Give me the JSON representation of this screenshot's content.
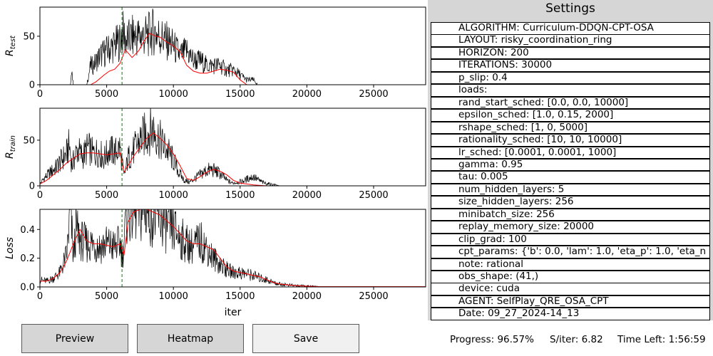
{
  "chart_data": [
    {
      "type": "line",
      "ylabel": "R_test",
      "ylabel_base": "R",
      "ylabel_sub": "test",
      "xlim": [
        0,
        28900
      ],
      "ylim": [
        0,
        80
      ],
      "xticks": [
        0,
        5000,
        10000,
        15000,
        20000,
        25000
      ],
      "yticks": [
        0,
        50
      ],
      "vline_x": 6150,
      "series": [
        {
          "color": "#000000",
          "style": "raw",
          "x": [
            0,
            2300,
            2350,
            2500,
            3000,
            3500,
            3800,
            4000,
            4500,
            5000,
            5500,
            6000,
            6150,
            6500,
            7000,
            7500,
            8000,
            8500,
            9000,
            9500,
            10000,
            10500,
            11000,
            11500,
            12000,
            12500,
            13000,
            13500,
            14000,
            14500,
            15000,
            15500,
            16000,
            16300,
            16500,
            28900
          ],
          "y": [
            0,
            0,
            20,
            0,
            0,
            0,
            20,
            20,
            30,
            35,
            40,
            45,
            55,
            45,
            50,
            50,
            50,
            55,
            50,
            45,
            40,
            30,
            35,
            25,
            25,
            20,
            20,
            20,
            15,
            15,
            10,
            5,
            5,
            0,
            0,
            0
          ]
        },
        {
          "color": "#ff0000",
          "style": "smooth",
          "x": [
            0,
            3800,
            4200,
            4800,
            5200,
            5600,
            6000,
            6400,
            6900,
            7400,
            7800,
            8200,
            8700,
            9000,
            9500,
            10000,
            10500,
            11000,
            11500,
            12000,
            12500,
            13000,
            13500,
            14000,
            14500,
            15000,
            15500,
            28900
          ],
          "y": [
            0,
            0,
            3,
            10,
            14,
            16,
            22,
            36,
            28,
            35,
            45,
            53,
            50,
            49,
            44,
            40,
            34,
            20,
            14,
            12,
            12,
            14,
            16,
            15,
            13,
            5,
            0,
            0
          ]
        }
      ]
    },
    {
      "type": "line",
      "ylabel": "R_train",
      "ylabel_base": "R",
      "ylabel_sub": "train",
      "xlim": [
        0,
        28900
      ],
      "ylim": [
        0,
        85
      ],
      "xticks": [
        0,
        5000,
        10000,
        15000,
        20000,
        25000
      ],
      "yticks": [
        0,
        50
      ],
      "vline_x": 6150,
      "series": [
        {
          "color": "#000000",
          "style": "raw",
          "x": [
            0,
            300,
            800,
            1200,
            1600,
            2000,
            2200,
            2400,
            2800,
            3200,
            3600,
            4000,
            4400,
            4800,
            5200,
            5600,
            6000,
            6300,
            6600,
            7000,
            7400,
            7800,
            8200,
            8500,
            8800,
            9200,
            9600,
            10000,
            10400,
            10800,
            11200,
            11600,
            12000,
            12400,
            12800,
            13200,
            13600,
            14000,
            14400,
            14800,
            15200,
            15600,
            16000,
            16400,
            16800,
            17200,
            17600,
            18000,
            28900
          ],
          "y": [
            2,
            8,
            15,
            20,
            28,
            35,
            45,
            22,
            40,
            32,
            42,
            35,
            38,
            30,
            40,
            36,
            42,
            10,
            30,
            38,
            48,
            55,
            60,
            62,
            55,
            45,
            38,
            28,
            15,
            6,
            4,
            8,
            12,
            16,
            18,
            16,
            12,
            6,
            3,
            4,
            5,
            8,
            10,
            6,
            3,
            2,
            1,
            0,
            0
          ]
        },
        {
          "color": "#ff0000",
          "style": "smooth",
          "x": [
            0,
            500,
            1000,
            1500,
            2000,
            2500,
            3000,
            3500,
            4000,
            4500,
            5000,
            5500,
            6000,
            6300,
            6600,
            7000,
            7500,
            8000,
            8500,
            9000,
            9500,
            10000,
            10500,
            11000,
            11500,
            12000,
            12500,
            13000,
            13500,
            14000,
            14500,
            15000,
            15500,
            16000,
            17000,
            28900
          ],
          "y": [
            2,
            6,
            12,
            18,
            25,
            30,
            35,
            36,
            36,
            35,
            34,
            35,
            36,
            15,
            22,
            32,
            42,
            52,
            58,
            52,
            45,
            35,
            22,
            8,
            6,
            10,
            15,
            18,
            16,
            12,
            6,
            3,
            2,
            1,
            0,
            0
          ]
        }
      ]
    },
    {
      "type": "line",
      "ylabel": "Loss",
      "ylabel_base": "Loss",
      "ylabel_sub": "",
      "xlabel": "iter",
      "xlim": [
        0,
        28900
      ],
      "ylim": [
        0,
        0.54
      ],
      "xticks": [
        0,
        5000,
        10000,
        15000,
        20000,
        25000
      ],
      "yticks": [
        0.0,
        0.2,
        0.4
      ],
      "vline_x": 6150,
      "series": [
        {
          "color": "#000000",
          "style": "raw",
          "x": [
            0,
            500,
            1000,
            1500,
            2000,
            2300,
            2500,
            2700,
            3000,
            3500,
            4000,
            4500,
            5000,
            5500,
            6000,
            6200,
            6500,
            7000,
            7500,
            8000,
            8500,
            9000,
            9500,
            10000,
            10500,
            11000,
            11500,
            12000,
            12500,
            13000,
            13500,
            14000,
            14500,
            15000,
            15500,
            16000,
            16500,
            17000,
            17500,
            18000,
            19000,
            20000,
            21000,
            28900
          ],
          "y": [
            0.05,
            0.04,
            0.06,
            0.1,
            0.22,
            0.54,
            0.2,
            0.4,
            0.33,
            0.3,
            0.3,
            0.28,
            0.3,
            0.28,
            0.3,
            0.22,
            0.5,
            0.54,
            0.52,
            0.54,
            0.5,
            0.48,
            0.42,
            0.4,
            0.34,
            0.3,
            0.28,
            0.32,
            0.27,
            0.2,
            0.16,
            0.12,
            0.1,
            0.1,
            0.09,
            0.08,
            0.06,
            0.05,
            0.03,
            0.02,
            0.01,
            0.005,
            0.002,
            0.002
          ]
        },
        {
          "color": "#ff0000",
          "style": "smooth",
          "x": [
            0,
            500,
            1000,
            1500,
            2000,
            2500,
            3000,
            3500,
            4000,
            4500,
            5000,
            5500,
            6000,
            6300,
            6600,
            7000,
            7500,
            8000,
            8500,
            9000,
            9500,
            10000,
            10500,
            11000,
            11500,
            12000,
            12500,
            13000,
            13500,
            14000,
            14500,
            15000,
            15500,
            16000,
            16500,
            17000,
            17500,
            18000,
            19000,
            20000,
            21000,
            28900
          ],
          "y": [
            0.04,
            0.04,
            0.06,
            0.1,
            0.18,
            0.3,
            0.4,
            0.32,
            0.3,
            0.3,
            0.29,
            0.28,
            0.3,
            0.22,
            0.45,
            0.52,
            0.54,
            0.54,
            0.52,
            0.5,
            0.46,
            0.42,
            0.37,
            0.32,
            0.3,
            0.3,
            0.28,
            0.26,
            0.2,
            0.14,
            0.11,
            0.1,
            0.09,
            0.08,
            0.07,
            0.05,
            0.03,
            0.02,
            0.01,
            0.005,
            0.002,
            0.002
          ]
        }
      ]
    }
  ],
  "buttons": {
    "preview": "Preview",
    "heatmap": "Heatmap",
    "save": "Save"
  },
  "settings": {
    "title": "Settings",
    "items": [
      "ALGORITHM: Curriculum-DDQN-CPT-OSA",
      "LAYOUT: risky_coordination_ring",
      "HORIZON: 200",
      "ITERATIONS: 30000",
      "p_slip: 0.4",
      "loads:",
      "rand_start_sched: [0.0, 0.0, 10000]",
      "epsilon_sched: [1.0, 0.15, 2000]",
      "rshape_sched: [1, 0, 5000]",
      "rationality_sched: [10, 10, 10000]",
      "lr_sched: [0.0001, 0.0001, 1000]",
      "gamma: 0.95",
      "tau: 0.005",
      "num_hidden_layers: 5",
      "size_hidden_layers: 256",
      "minibatch_size: 256",
      "replay_memory_size: 20000",
      "clip_grad: 100",
      "cpt_params: {'b': 0.0, 'lam': 1.0, 'eta_p': 1.0, 'eta_n",
      "note: rational",
      "obs_shape: (41,)",
      "device: cuda",
      "AGENT: SelfPlay_QRE_OSA_CPT",
      "Date: 09_27_2024-14_13"
    ]
  },
  "status": {
    "progress": "Progress: 96.57%",
    "s_iter": "S/iter: 6.82",
    "time_left": "Time Left: 1:56:59"
  },
  "colors": {
    "settings_bg": "#d6d6d6",
    "button_gray": "#d6d6d6",
    "button_light": "#f0f0f0",
    "vline": "#008000"
  }
}
